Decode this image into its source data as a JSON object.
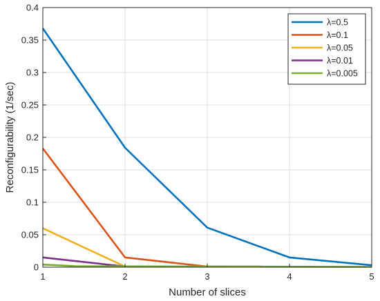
{
  "chart_data": {
    "type": "line",
    "title": "",
    "xlabel": "Number of slices",
    "ylabel": "Reconfigurability (1/sec)",
    "xlim": [
      1,
      5
    ],
    "ylim": [
      0,
      0.4
    ],
    "xticks": [
      1,
      2,
      3,
      4,
      5
    ],
    "yticks": [
      0,
      0.05,
      0.1,
      0.15,
      0.2,
      0.25,
      0.3,
      0.35,
      0.4
    ],
    "grid": true,
    "legend_position": "top-right",
    "series": [
      {
        "name": "λ=0.5",
        "color": "#0072BD",
        "x": [
          1,
          2,
          3,
          4,
          5
        ],
        "y": [
          0.368,
          0.184,
          0.061,
          0.015,
          0.003
        ]
      },
      {
        "name": "λ=0.1",
        "color": "#D95319",
        "x": [
          1,
          2,
          3,
          3.65
        ],
        "y": [
          0.183,
          0.015,
          0.001,
          0.001
        ]
      },
      {
        "name": "λ=0.05",
        "color": "#EDB120",
        "x": [
          1,
          2
        ],
        "y": [
          0.06,
          0.001
        ]
      },
      {
        "name": "λ=0.01",
        "color": "#7E2F8E",
        "x": [
          1,
          2
        ],
        "y": [
          0.015,
          0.001
        ]
      },
      {
        "name": "λ=0.005",
        "color": "#77AC30",
        "x": [
          1,
          1.4,
          5
        ],
        "y": [
          0.004,
          0.0015,
          0.0005
        ]
      }
    ]
  }
}
